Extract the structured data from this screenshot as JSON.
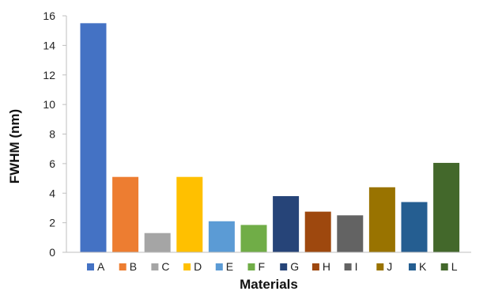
{
  "chart_data": {
    "type": "bar",
    "xlabel": "Materials",
    "ylabel": "FWHM (nm)",
    "ylim": [
      0,
      16
    ],
    "yticks": [
      0,
      2,
      4,
      6,
      8,
      10,
      12,
      14,
      16
    ],
    "grid": false,
    "legend_position": "bottom",
    "categories": [
      "A",
      "B",
      "C",
      "D",
      "E",
      "F",
      "G",
      "H",
      "I",
      "J",
      "K",
      "L"
    ],
    "values": [
      15.5,
      5.1,
      1.3,
      5.1,
      2.1,
      1.85,
      3.8,
      2.75,
      2.5,
      4.4,
      3.4,
      6.05
    ],
    "colors": [
      "#4472C4",
      "#ED7D31",
      "#A5A5A5",
      "#FFC000",
      "#5B9BD5",
      "#70AD47",
      "#264478",
      "#9E480E",
      "#636363",
      "#997300",
      "#255E91",
      "#43682B"
    ]
  }
}
